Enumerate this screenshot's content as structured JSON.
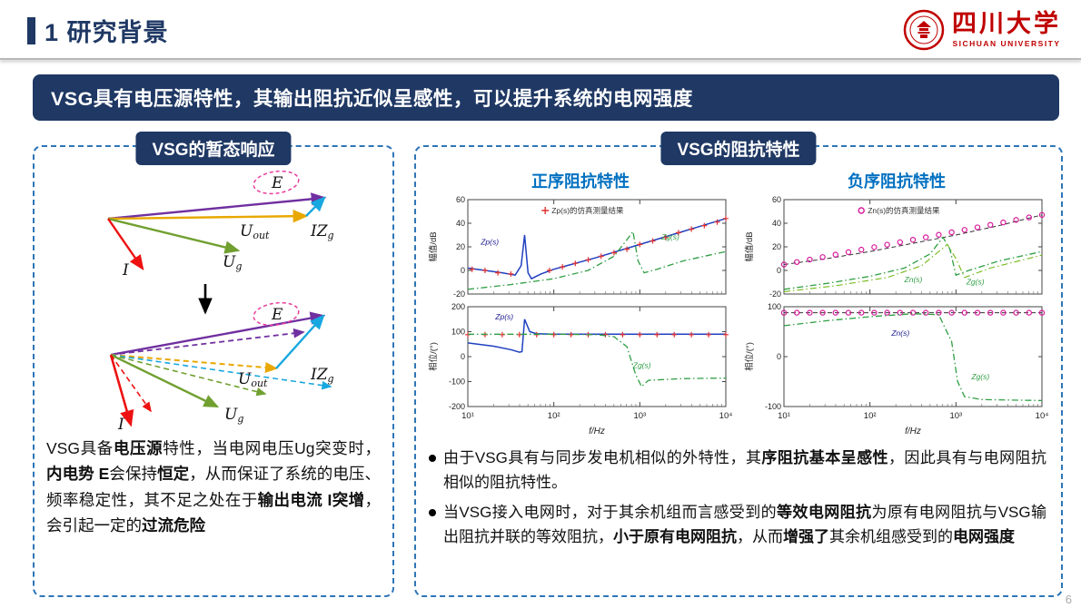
{
  "header": {
    "title": "1 研究背景"
  },
  "logo": {
    "name": "四川大学",
    "name_en": "SICHUAN UNIVERSITY"
  },
  "banner": "VSG具有电压源特性，其输出阻抗近似呈感性，可以提升系统的电网强度",
  "left_panel": {
    "badge": "VSG的暂态响应",
    "vector_labels": {
      "E": "E",
      "U": "U",
      "out": "out",
      "IZ": "IZ",
      "g": "g",
      "I": "I"
    },
    "description": [
      {
        "t": "VSG具备",
        "b": false
      },
      {
        "t": "电压源",
        "b": true
      },
      {
        "t": "特性，当电网电压Ug突变时，",
        "b": false
      },
      {
        "t": "内电势 E",
        "b": true
      },
      {
        "t": "会保持",
        "b": false
      },
      {
        "t": "恒定",
        "b": true
      },
      {
        "t": "，从而保证了系统的电压、频率稳定性，其不足之处在于",
        "b": false
      },
      {
        "t": "输出电流 I突增",
        "b": true
      },
      {
        "t": "，会引起一定的",
        "b": false
      },
      {
        "t": "过流危险",
        "b": true
      }
    ]
  },
  "right_panel": {
    "badge": "VSG的阻抗特性",
    "pos_title": "正序阻抗特性",
    "neg_title": "负序阻抗特性",
    "bullets": [
      [
        {
          "t": "由于VSG具有与同步发电机相似的外特性，其",
          "b": false
        },
        {
          "t": "序阻抗基本呈感性",
          "b": true
        },
        {
          "t": "，因此具有与电网阻抗相似的阻抗特性。",
          "b": false
        }
      ],
      [
        {
          "t": "当VSG接入电网时，对于其余机组而言感受到的",
          "b": false
        },
        {
          "t": "等效电网阻抗",
          "b": true
        },
        {
          "t": "为原有电网阻抗与VSG输出阻抗并联的等效阻抗，",
          "b": false
        },
        {
          "t": "小于原有电网阻抗",
          "b": true
        },
        {
          "t": "，从而",
          "b": false
        },
        {
          "t": "增强了",
          "b": true
        },
        {
          "t": "其余机组感受到的",
          "b": false
        },
        {
          "t": "电网强度",
          "b": true
        }
      ]
    ]
  },
  "page_number": "6",
  "colors": {
    "primary": "#1F3864",
    "accent_blue": "#0070C0",
    "border_blue": "#2E75B6",
    "seal_red": "#C00000"
  },
  "chart_data": [
    {
      "id": "pos-mag",
      "type": "line",
      "xlim": [
        1,
        4
      ],
      "ylim": [
        -20,
        60
      ],
      "yticks": [
        {
          "v": 60,
          "l": "60"
        },
        {
          "v": 40,
          "l": "40"
        },
        {
          "v": 20,
          "l": "20"
        },
        {
          "v": 0,
          "l": "0"
        },
        {
          "v": -20,
          "l": "-20"
        }
      ],
      "xticks": [
        {
          "v": 1,
          "l": "10¹"
        },
        {
          "v": 2,
          "l": "10²"
        },
        {
          "v": 3,
          "l": "10³"
        },
        {
          "v": 4,
          "l": "10⁴"
        }
      ],
      "show_x_labels": false,
      "ylabel": "幅值/dB",
      "legend": {
        "marker": "plus",
        "color": "#e03131",
        "text": "Zp(s)的仿真测量结果"
      },
      "series": [
        {
          "name": "Zp-line",
          "color": "#2040c0",
          "style": "solid",
          "width": 1.5,
          "points": [
            [
              1,
              2
            ],
            [
              1.2,
              0
            ],
            [
              1.4,
              -2
            ],
            [
              1.55,
              -4
            ],
            [
              1.62,
              4
            ],
            [
              1.66,
              30
            ],
            [
              1.7,
              -2
            ],
            [
              1.74,
              -7
            ],
            [
              1.85,
              -3
            ],
            [
              2,
              1
            ],
            [
              2.2,
              5
            ],
            [
              2.5,
              11
            ],
            [
              3,
              22
            ],
            [
              3.5,
              33
            ],
            [
              4,
              44
            ]
          ]
        },
        {
          "name": "Zp-measured",
          "color": "#e03131",
          "style": "none",
          "marker": "plus",
          "points": [
            [
              1.05,
              1
            ],
            [
              1.2,
              0
            ],
            [
              1.35,
              -2
            ],
            [
              1.5,
              -3
            ],
            [
              1.95,
              0
            ],
            [
              2.1,
              3
            ],
            [
              2.25,
              6
            ],
            [
              2.4,
              9
            ],
            [
              2.55,
              12
            ],
            [
              2.7,
              15
            ],
            [
              2.85,
              18
            ],
            [
              3,
              22
            ],
            [
              3.15,
              25
            ],
            [
              3.3,
              28
            ],
            [
              3.45,
              32
            ],
            [
              3.6,
              35
            ],
            [
              3.75,
              38
            ],
            [
              3.9,
              41
            ],
            [
              4,
              44
            ]
          ]
        },
        {
          "name": "Zg",
          "color": "#2f9e44",
          "style": "dashdot",
          "width": 1.3,
          "points": [
            [
              1,
              -16
            ],
            [
              1.5,
              -12
            ],
            [
              2,
              -7
            ],
            [
              2.4,
              0
            ],
            [
              2.7,
              12
            ],
            [
              2.85,
              26
            ],
            [
              2.92,
              33
            ],
            [
              2.98,
              8
            ],
            [
              3.05,
              -2
            ],
            [
              3.2,
              1
            ],
            [
              3.5,
              8
            ],
            [
              4,
              16
            ]
          ]
        }
      ],
      "annotations": [
        {
          "x": 1.15,
          "y": 22,
          "t": "Zp(s)",
          "color": "#1a1a8c"
        },
        {
          "x": 3.25,
          "y": 26,
          "t": "Zg(s)",
          "color": "#2f9e44"
        }
      ]
    },
    {
      "id": "pos-phase",
      "type": "line",
      "xlim": [
        1,
        4
      ],
      "ylim": [
        -200,
        200
      ],
      "yticks": [
        {
          "v": 200,
          "l": "200"
        },
        {
          "v": 100,
          "l": "100"
        },
        {
          "v": 0,
          "l": "0"
        },
        {
          "v": -100,
          "l": "-100"
        },
        {
          "v": -200,
          "l": "-200"
        }
      ],
      "xticks": [
        {
          "v": 1,
          "l": "10¹"
        },
        {
          "v": 2,
          "l": "10²"
        },
        {
          "v": 3,
          "l": "10³"
        },
        {
          "v": 4,
          "l": "10⁴"
        }
      ],
      "show_x_labels": true,
      "ylabel": "相位/(°)",
      "xlabel": "f/Hz",
      "series": [
        {
          "name": "Zp-line",
          "color": "#2040c0",
          "style": "solid",
          "width": 1.5,
          "points": [
            [
              1,
              55
            ],
            [
              1.3,
              42
            ],
            [
              1.5,
              28
            ],
            [
              1.6,
              18
            ],
            [
              1.63,
              20
            ],
            [
              1.66,
              150
            ],
            [
              1.72,
              100
            ],
            [
              1.8,
              92
            ],
            [
              2,
              90
            ],
            [
              4,
              90
            ]
          ]
        },
        {
          "name": "Zp-measured",
          "color": "#e03131",
          "style": "none",
          "marker": "plus",
          "points": [
            [
              1,
              88
            ],
            [
              1.2,
              88
            ],
            [
              1.4,
              88
            ],
            [
              1.6,
              88
            ],
            [
              1.8,
              88
            ],
            [
              2,
              88
            ],
            [
              2.2,
              88
            ],
            [
              2.4,
              88
            ],
            [
              2.6,
              88
            ],
            [
              2.8,
              88
            ],
            [
              3,
              88
            ],
            [
              3.2,
              88
            ],
            [
              3.4,
              88
            ],
            [
              3.6,
              88
            ],
            [
              3.8,
              88
            ],
            [
              4,
              88
            ]
          ]
        },
        {
          "name": "Zg",
          "color": "#2f9e44",
          "style": "dashdot",
          "width": 1.3,
          "points": [
            [
              1,
              90
            ],
            [
              2,
              90
            ],
            [
              2.5,
              88
            ],
            [
              2.7,
              80
            ],
            [
              2.85,
              40
            ],
            [
              2.95,
              -70
            ],
            [
              3.02,
              -120
            ],
            [
              3.1,
              -95
            ],
            [
              3.5,
              -88
            ],
            [
              4,
              -86
            ]
          ]
        }
      ],
      "annotations": [
        {
          "x": 1.32,
          "y": 150,
          "t": "Zp(s)",
          "color": "#1a1a8c"
        },
        {
          "x": 2.92,
          "y": -45,
          "t": "Zg(s)",
          "color": "#2f9e44"
        }
      ]
    },
    {
      "id": "neg-mag",
      "type": "line",
      "xlim": [
        1,
        4
      ],
      "ylim": [
        -20,
        60
      ],
      "yticks": [
        {
          "v": 60,
          "l": "60"
        },
        {
          "v": 40,
          "l": "40"
        },
        {
          "v": 20,
          "l": "20"
        },
        {
          "v": 0,
          "l": "0"
        },
        {
          "v": -20,
          "l": "-20"
        }
      ],
      "xticks": [
        {
          "v": 1,
          "l": "10¹"
        },
        {
          "v": 2,
          "l": "10²"
        },
        {
          "v": 3,
          "l": "10³"
        },
        {
          "v": 4,
          "l": "10⁴"
        }
      ],
      "show_x_labels": false,
      "ylabel": "幅值/dB",
      "legend": {
        "marker": "circle",
        "color": "#d6199a",
        "text": "Zn(s)的仿真测量结果"
      },
      "series": [
        {
          "name": "Zn-line",
          "color": "#333333",
          "style": "dash",
          "width": 1,
          "points": [
            [
              1,
              5
            ],
            [
              1.5,
              10
            ],
            [
              2,
              16
            ],
            [
              2.5,
              23
            ],
            [
              3,
              30
            ],
            [
              3.5,
              38
            ],
            [
              4,
              47
            ]
          ]
        },
        {
          "name": "Zn-measured",
          "color": "#d6199a",
          "style": "none",
          "marker": "circle",
          "points": [
            [
              1,
              5
            ],
            [
              1.15,
              7.1
            ],
            [
              1.3,
              9.2
            ],
            [
              1.45,
              11.3
            ],
            [
              1.6,
              13.4
            ],
            [
              1.75,
              15.5
            ],
            [
              1.9,
              17.6
            ],
            [
              2.05,
              19.7
            ],
            [
              2.2,
              21.8
            ],
            [
              2.35,
              23.9
            ],
            [
              2.5,
              26
            ],
            [
              2.65,
              28.1
            ],
            [
              2.8,
              30.2
            ],
            [
              2.95,
              32.3
            ],
            [
              3.1,
              34.4
            ],
            [
              3.25,
              36.5
            ],
            [
              3.4,
              38.6
            ],
            [
              3.55,
              40.7
            ],
            [
              3.7,
              42.8
            ],
            [
              3.85,
              44.9
            ],
            [
              4,
              47
            ]
          ]
        },
        {
          "name": "Zg",
          "color": "#2f9e44",
          "style": "dashdot",
          "width": 1.3,
          "points": [
            [
              1,
              -16
            ],
            [
              1.5,
              -11
            ],
            [
              2,
              -5
            ],
            [
              2.4,
              2
            ],
            [
              2.7,
              14
            ],
            [
              2.85,
              28
            ],
            [
              2.93,
              18
            ],
            [
              3,
              -4
            ],
            [
              3.15,
              0
            ],
            [
              3.5,
              8
            ],
            [
              4,
              16
            ]
          ]
        },
        {
          "name": "Zg2",
          "color": "#74b816",
          "style": "dashdot",
          "width": 1.1,
          "points": [
            [
              1,
              -18
            ],
            [
              1.6,
              -13
            ],
            [
              2.2,
              -6
            ],
            [
              2.6,
              4
            ],
            [
              2.9,
              22
            ],
            [
              3,
              10
            ],
            [
              3.1,
              -6
            ],
            [
              3.4,
              2
            ],
            [
              4,
              13
            ]
          ]
        }
      ],
      "annotations": [
        {
          "x": 2.4,
          "y": -10,
          "t": "Zn(s)",
          "color": "#2f9e44"
        },
        {
          "x": 3.12,
          "y": -12,
          "t": "Zg(s)",
          "color": "#2f9e44"
        }
      ]
    },
    {
      "id": "neg-phase",
      "type": "line",
      "xlim": [
        1,
        4
      ],
      "ylim": [
        -100,
        100
      ],
      "yticks": [
        {
          "v": 100,
          "l": "100"
        },
        {
          "v": 0,
          "l": "0"
        },
        {
          "v": -100,
          "l": "-100"
        }
      ],
      "xticks": [
        {
          "v": 1,
          "l": "10¹"
        },
        {
          "v": 2,
          "l": "10²"
        },
        {
          "v": 3,
          "l": "10³"
        },
        {
          "v": 4,
          "l": "10⁴"
        }
      ],
      "show_x_labels": true,
      "ylabel": "相位/(°)",
      "xlabel": "f/Hz",
      "series": [
        {
          "name": "Zn-line",
          "color": "#333333",
          "style": "dash",
          "width": 1,
          "points": [
            [
              1,
              88
            ],
            [
              4,
              88
            ]
          ]
        },
        {
          "name": "Zn-measured",
          "color": "#d6199a",
          "style": "none",
          "marker": "circle",
          "points": [
            [
              1,
              88
            ],
            [
              1.15,
              88
            ],
            [
              1.3,
              88
            ],
            [
              1.45,
              88
            ],
            [
              1.6,
              88
            ],
            [
              1.75,
              88
            ],
            [
              1.9,
              88
            ],
            [
              2.05,
              88
            ],
            [
              2.2,
              88
            ],
            [
              2.35,
              88
            ],
            [
              2.5,
              88
            ],
            [
              2.65,
              88
            ],
            [
              2.8,
              88
            ],
            [
              2.95,
              88
            ],
            [
              3.1,
              88
            ],
            [
              3.25,
              88
            ],
            [
              3.4,
              88
            ],
            [
              3.55,
              88
            ],
            [
              3.7,
              88
            ],
            [
              3.85,
              88
            ],
            [
              4,
              88
            ]
          ]
        },
        {
          "name": "Zg",
          "color": "#2f9e44",
          "style": "dashdot",
          "width": 1.3,
          "points": [
            [
              1,
              62
            ],
            [
              1.5,
              72
            ],
            [
              2,
              80
            ],
            [
              2.5,
              86
            ],
            [
              2.8,
              84
            ],
            [
              2.95,
              30
            ],
            [
              3.02,
              -50
            ],
            [
              3.1,
              -80
            ],
            [
              3.3,
              -86
            ],
            [
              4,
              -88
            ]
          ]
        }
      ],
      "annotations": [
        {
          "x": 2.25,
          "y": 42,
          "t": "Zn(s)",
          "color": "#1a1a8c"
        },
        {
          "x": 3.18,
          "y": -45,
          "t": "Zg(s)",
          "color": "#2f9e44"
        }
      ]
    }
  ]
}
